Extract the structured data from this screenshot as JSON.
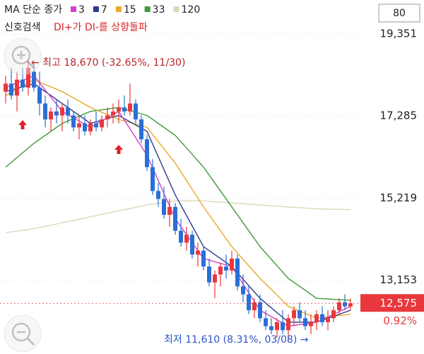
{
  "chart_data": {
    "type": "candlestick",
    "legend_title": "MA 단순 종가",
    "signal_label": "신호검색",
    "signal": "DI+가 DI-를 상향돌파",
    "period_box": "80",
    "high_note": "← 최고 18,670 (-32.65%, 11/30)",
    "low_note": "최저 11,610 (8.31%, 03/08) →",
    "last_price": {
      "value": 12575,
      "label": "12,575"
    },
    "change": "0.92%",
    "up_color": "#e8383d",
    "down_color": "#2a6fd6",
    "ylim": [
      11300,
      19670
    ],
    "yticks": [
      {
        "value": 13153,
        "label": "13,153"
      },
      {
        "value": 15219,
        "label": "15,219"
      },
      {
        "value": 17285,
        "label": "17,285"
      },
      {
        "value": 19351,
        "label": "19,351"
      }
    ],
    "grid": true,
    "candles": [
      [
        17900,
        18300,
        17600,
        18100
      ],
      [
        18100,
        18500,
        17700,
        17800
      ],
      [
        17800,
        18400,
        17400,
        18200
      ],
      [
        18200,
        18500,
        17900,
        18000
      ],
      [
        18000,
        18670,
        17800,
        18500
      ],
      [
        18400,
        18600,
        17900,
        18000
      ],
      [
        18000,
        18400,
        17300,
        17600
      ],
      [
        17600,
        17800,
        17000,
        17200
      ],
      [
        17200,
        17500,
        16900,
        17400
      ],
      [
        17400,
        17700,
        17100,
        17300
      ],
      [
        17300,
        17600,
        16900,
        17500
      ],
      [
        17500,
        17700,
        17100,
        17300
      ],
      [
        17300,
        17400,
        16900,
        17000
      ],
      [
        17000,
        17300,
        16700,
        17100
      ],
      [
        17100,
        17300,
        16800,
        16900
      ],
      [
        16900,
        17200,
        16800,
        17100
      ],
      [
        17100,
        17400,
        16900,
        17000
      ],
      [
        17000,
        17300,
        16900,
        17200
      ],
      [
        17200,
        17500,
        17000,
        17300
      ],
      [
        17300,
        17600,
        17100,
        17400
      ],
      [
        17400,
        17700,
        17100,
        17500
      ],
      [
        17500,
        17800,
        17300,
        17400
      ],
      [
        17400,
        18100,
        17300,
        17600
      ],
      [
        17600,
        17700,
        17100,
        17200
      ],
      [
        17200,
        17300,
        16600,
        16700
      ],
      [
        16700,
        16800,
        15900,
        16000
      ],
      [
        16000,
        16200,
        15300,
        15400
      ],
      [
        15400,
        15600,
        15000,
        15200
      ],
      [
        15200,
        15500,
        14700,
        14800
      ],
      [
        14800,
        15200,
        14500,
        15000
      ],
      [
        15000,
        15100,
        14300,
        14400
      ],
      [
        14400,
        14700,
        14000,
        14100
      ],
      [
        14100,
        14500,
        13900,
        14300
      ],
      [
        14300,
        14400,
        13700,
        13800
      ],
      [
        13800,
        14100,
        13500,
        13900
      ],
      [
        13900,
        14000,
        13400,
        13500
      ],
      [
        13500,
        13700,
        13000,
        13100
      ],
      [
        13100,
        13400,
        12700,
        13300
      ],
      [
        13300,
        13600,
        13000,
        13500
      ],
      [
        13500,
        13800,
        13200,
        13400
      ],
      [
        13400,
        13900,
        13300,
        13700
      ],
      [
        13700,
        13800,
        12900,
        13000
      ],
      [
        13000,
        13300,
        12600,
        12800
      ],
      [
        12800,
        13000,
        12300,
        12400
      ],
      [
        12400,
        12700,
        12200,
        12600
      ],
      [
        12600,
        12800,
        12100,
        12200
      ],
      [
        12200,
        12400,
        11900,
        12000
      ],
      [
        12000,
        12200,
        11800,
        11900
      ],
      [
        11900,
        12200,
        11700,
        12100
      ],
      [
        12100,
        12400,
        11800,
        11900
      ],
      [
        11900,
        12300,
        11610,
        12200
      ],
      [
        12200,
        12500,
        12000,
        12400
      ],
      [
        12400,
        12600,
        12100,
        12200
      ],
      [
        12200,
        12400,
        11900,
        12000
      ],
      [
        12000,
        12300,
        11800,
        12100
      ],
      [
        12100,
        12400,
        11900,
        12300
      ],
      [
        12300,
        12500,
        12000,
        12100
      ],
      [
        12100,
        12400,
        11900,
        12200
      ],
      [
        12200,
        12500,
        12100,
        12400
      ],
      [
        12400,
        12700,
        12300,
        12600
      ],
      [
        12600,
        12800,
        12400,
        12500
      ],
      [
        12500,
        12700,
        12400,
        12575
      ]
    ],
    "x": [
      0,
      5,
      10,
      15,
      20,
      25,
      30,
      35,
      40,
      45,
      50,
      55,
      61
    ],
    "series": [
      {
        "name": "3",
        "color": "#d63fc8",
        "values": [
          18000,
          18300,
          17400,
          17000,
          17400,
          16300,
          14700,
          13700,
          13500,
          12400,
          12000,
          12100,
          12500
        ]
      },
      {
        "name": "7",
        "color": "#2b3a8f",
        "values": [
          17900,
          18100,
          17600,
          17100,
          17300,
          16900,
          15300,
          14000,
          13500,
          12700,
          12100,
          12100,
          12400
        ]
      },
      {
        "name": "15",
        "color": "#e8a92a",
        "values": [
          17800,
          18200,
          17900,
          17500,
          17200,
          17000,
          16100,
          15000,
          14000,
          13200,
          12500,
          12200,
          12300
        ]
      },
      {
        "name": "33",
        "color": "#3f9a3a",
        "values": [
          16000,
          16600,
          17100,
          17400,
          17500,
          17300,
          16800,
          16000,
          15000,
          14000,
          13200,
          12700,
          12650
        ]
      },
      {
        "name": "120",
        "color": "#ddd8b8",
        "values": [
          14350,
          14450,
          14600,
          14750,
          14900,
          15050,
          15150,
          15150,
          15100,
          15050,
          15000,
          14950,
          14930
        ]
      }
    ]
  }
}
